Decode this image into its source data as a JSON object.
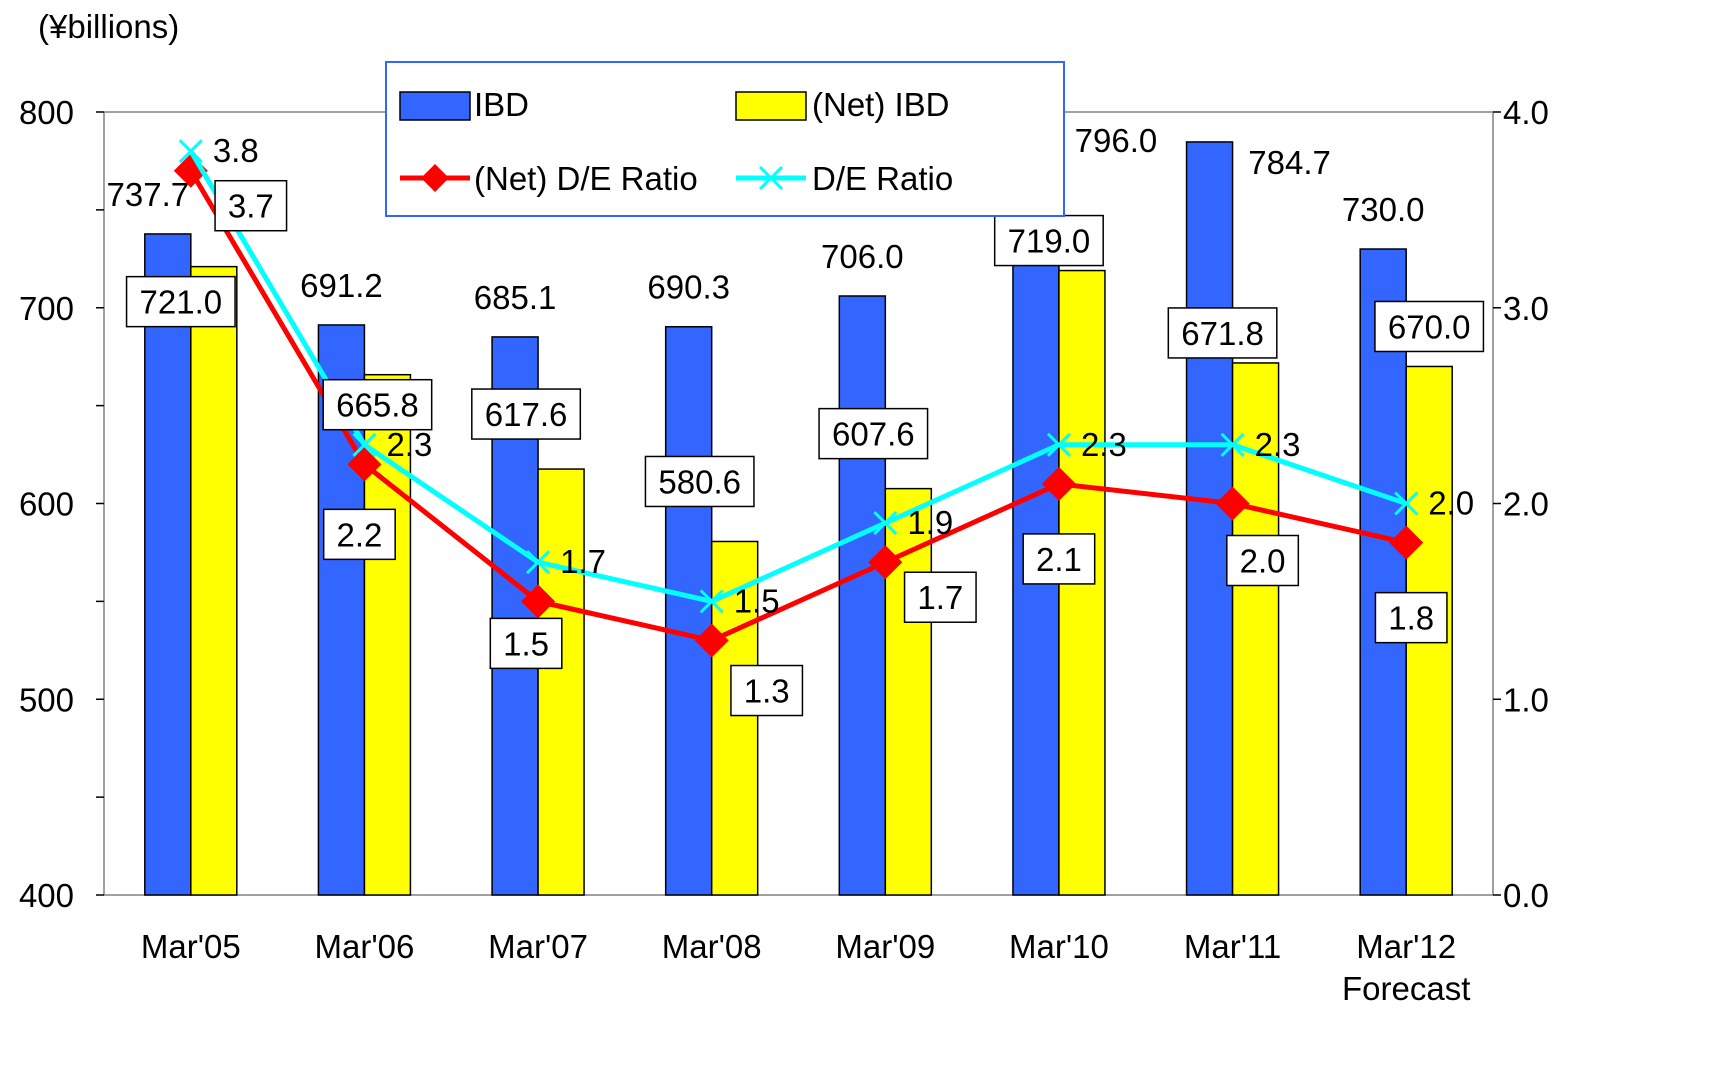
{
  "chart_data": {
    "type": "bar",
    "unit_label": "(¥billions)",
    "categories": [
      "Mar'05",
      "Mar'06",
      "Mar'07",
      "Mar'08",
      "Mar'09",
      "Mar'10",
      "Mar'11",
      "Mar'12"
    ],
    "category_sublabels": [
      "",
      "",
      "",
      "",
      "",
      "",
      "",
      "Forecast"
    ],
    "y_left": {
      "min": 400,
      "max": 800,
      "ticks": [
        "400",
        "500",
        "600",
        "700",
        "800"
      ]
    },
    "y_right": {
      "min": 0,
      "max": 4,
      "ticks": [
        "0.0",
        "1.0",
        "2.0",
        "3.0",
        "4.0"
      ]
    },
    "bar_series": [
      {
        "name": "IBD",
        "color": "#3366ff",
        "values": [
          737.7,
          691.2,
          685.1,
          690.3,
          706.0,
          796.0,
          784.7,
          730.0
        ],
        "labels": [
          "737.7",
          "691.2",
          "685.1",
          "690.3",
          "706.0",
          "796.0",
          "784.7",
          "730.0"
        ]
      },
      {
        "name": "(Net) IBD",
        "color": "#ffff00",
        "values": [
          721.0,
          665.8,
          617.6,
          580.6,
          607.6,
          719.0,
          671.8,
          670.0
        ],
        "labels": [
          "721.0",
          "665.8",
          "617.6",
          "580.6",
          "607.6",
          "719.0",
          "671.8",
          "670.0"
        ]
      }
    ],
    "line_series": [
      {
        "name": "(Net) D/E Ratio",
        "color": "#ff0000",
        "marker": "diamond",
        "values": [
          3.7,
          2.2,
          1.5,
          1.3,
          1.7,
          2.1,
          2.0,
          1.8
        ],
        "labels": [
          "3.7",
          "2.2",
          "1.5",
          "1.3",
          "1.7",
          "2.1",
          "2.0",
          "1.8"
        ]
      },
      {
        "name": "D/E Ratio",
        "color": "#00ffff",
        "marker": "x",
        "values": [
          3.8,
          2.3,
          1.7,
          1.5,
          1.9,
          2.3,
          2.3,
          2.0
        ],
        "labels": [
          "3.8",
          "2.3",
          "1.7",
          "1.5",
          "1.9",
          "2.3",
          "2.3",
          "2.0"
        ]
      }
    ],
    "legend_position": "top-center",
    "grid": false
  }
}
